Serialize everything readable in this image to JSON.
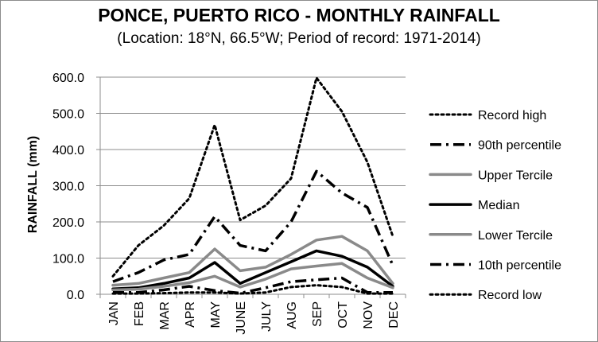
{
  "chart_data": {
    "type": "line",
    "title": "PONCE, PUERTO RICO - MONTHLY RAINFALL",
    "subtitle": "(Location: 18°N, 66.5°W; Period of record: 1971-2014)",
    "xlabel": "",
    "ylabel": "RAINFALL (mm)",
    "ylim": [
      0,
      600
    ],
    "ytick_labels": [
      "0.0",
      "100.0",
      "200.0",
      "300.0",
      "400.0",
      "500.0",
      "600.0"
    ],
    "grid": true,
    "legend_position": "right",
    "categories": [
      "JAN",
      "FEB",
      "MAR",
      "APR",
      "MAY",
      "JUNE",
      "JULY",
      "AUG",
      "SEP",
      "OCT",
      "NOV",
      "DEC"
    ],
    "series": [
      {
        "name": "Record high",
        "style": "dotted",
        "color": "#000000",
        "values": [
          50,
          135,
          190,
          265,
          468,
          205,
          245,
          320,
          598,
          505,
          365,
          160
        ]
      },
      {
        "name": "90th percentile",
        "style": "dashdot",
        "color": "#000000",
        "values": [
          35,
          60,
          95,
          110,
          215,
          135,
          120,
          200,
          340,
          280,
          240,
          80
        ]
      },
      {
        "name": "Upper Tercile",
        "style": "solid",
        "color": "#8a8a8a",
        "values": [
          25,
          30,
          45,
          60,
          125,
          65,
          75,
          110,
          150,
          160,
          120,
          30
        ]
      },
      {
        "name": "Median",
        "style": "solid",
        "color": "#000000",
        "values": [
          15,
          18,
          30,
          45,
          88,
          30,
          60,
          90,
          120,
          105,
          75,
          22
        ]
      },
      {
        "name": "Lower Tercile",
        "style": "solid",
        "color": "#8a8a8a",
        "values": [
          12,
          14,
          22,
          32,
          50,
          20,
          42,
          70,
          78,
          85,
          45,
          18
        ]
      },
      {
        "name": "10th percentile",
        "style": "dashdot",
        "color": "#000000",
        "values": [
          5,
          5,
          12,
          22,
          10,
          3,
          18,
          35,
          40,
          45,
          5,
          5
        ]
      },
      {
        "name": "Record low",
        "style": "dotted",
        "color": "#000000",
        "values": [
          2,
          2,
          3,
          5,
          5,
          2,
          5,
          20,
          25,
          20,
          2,
          2
        ]
      }
    ]
  }
}
